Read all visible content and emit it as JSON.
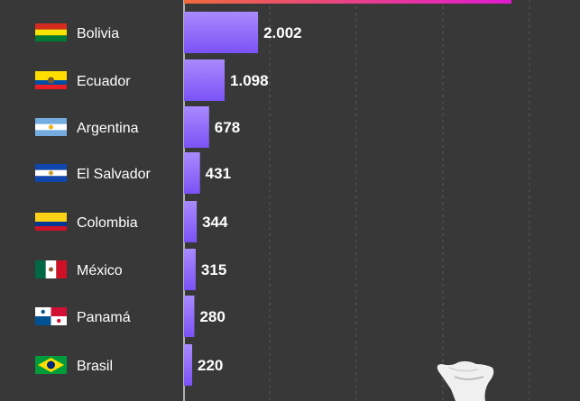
{
  "chart_data": {
    "type": "bar",
    "orientation": "horizontal",
    "title": "",
    "xlabel": "",
    "ylabel": "",
    "grid": true,
    "categories": [
      "Bolivia",
      "Ecuador",
      "Argentina",
      "El Salvador",
      "Colombia",
      "México",
      "Panamá",
      "Brasil"
    ],
    "values": [
      2002,
      1098,
      678,
      431,
      344,
      315,
      280,
      220
    ],
    "value_labels": [
      "2.002",
      "1.098",
      "678",
      "431",
      "344",
      "315",
      "280",
      "220"
    ],
    "flag_icons": [
      "flag-bolivia-icon",
      "flag-ecuador-icon",
      "flag-argentina-icon",
      "flag-el-salvador-icon",
      "flag-colombia-icon",
      "flag-mexico-icon",
      "flag-panama-icon",
      "flag-brasil-icon"
    ],
    "partial_top_bar": {
      "note_visible": false,
      "gradient": [
        "#f06a3c",
        "#e01ad0"
      ]
    },
    "colors": {
      "background": "#383838",
      "bar_top": "#a98bff",
      "bar_bottom": "#7a52f5",
      "grid": "#5a5a5a",
      "axis": "#d8d8d8",
      "text": "#ffffff"
    }
  }
}
